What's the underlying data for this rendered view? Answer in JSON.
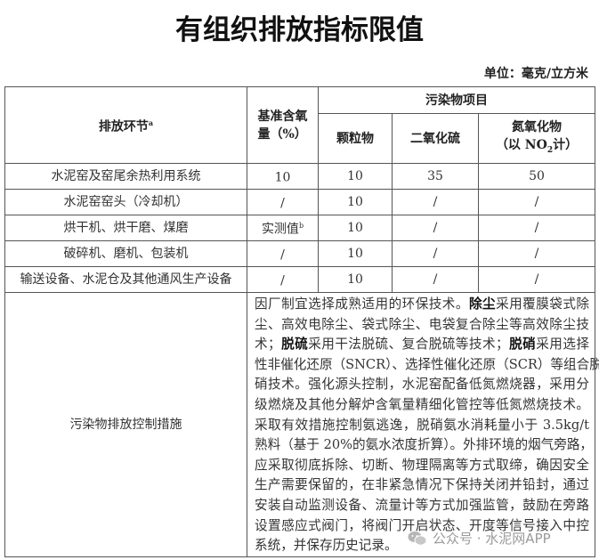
{
  "title": "有组织排放指标限值",
  "unit": "单位：毫克/立方米",
  "header": {
    "stage": "排放环节",
    "stage_note": "a",
    "oxygen": "基准含氧量（%）",
    "pollutants": "污染物项目",
    "pm": "颗粒物",
    "so2": "二氧化硫",
    "nox_line1": "氮氧化物",
    "nox_line2_pre": "（以 NO",
    "nox_sub": "2",
    "nox_line2_post": "计）"
  },
  "rows": [
    {
      "stage": "水泥窑及窑尾余热利用系统",
      "oxygen": "10",
      "oxygen_note": "",
      "pm": "10",
      "so2": "35",
      "nox": "50"
    },
    {
      "stage": "水泥窑窑头（冷却机）",
      "oxygen": "/",
      "oxygen_note": "",
      "pm": "10",
      "so2": "/",
      "nox": "/"
    },
    {
      "stage": "烘干机、烘干磨、煤磨",
      "oxygen": "实测值",
      "oxygen_note": "b",
      "pm": "10",
      "so2": "/",
      "nox": "/"
    },
    {
      "stage": "破碎机、磨机、包装机",
      "oxygen": "/",
      "oxygen_note": "",
      "pm": "10",
      "so2": "/",
      "nox": "/"
    },
    {
      "stage": "输送设备、水泥仓及其他通风生产设备",
      "oxygen": "/",
      "oxygen_note": "",
      "pm": "10",
      "so2": "/",
      "nox": "/"
    }
  ],
  "measures": {
    "label": "污染物排放控制措施",
    "lines": [
      [
        {
          "t": "因厂制宜选择成熟适用的环保技术。"
        },
        {
          "t": "除尘",
          "b": true
        },
        {
          "t": "采用覆膜袋式除"
        }
      ],
      [
        {
          "t": "尘、高效电除尘、袋式除尘、电袋复合除尘等高效除尘技"
        }
      ],
      [
        {
          "t": "术；"
        },
        {
          "t": "脱硫",
          "b": true
        },
        {
          "t": "采用干法脱硫、复合脱硫等技术；"
        },
        {
          "t": "脱硝",
          "b": true
        },
        {
          "t": "采用选择"
        }
      ],
      [
        {
          "t": "性非催化还原（SNCR）、选择性催化还原（SCR）等组合脱"
        }
      ],
      [
        {
          "t": "硝技术。强化源头控制，水泥窑配备低氮燃烧器，采用分"
        }
      ],
      [
        {
          "t": "级燃烧及其他分解炉含氧量精细化管控等低氮燃烧技术。"
        }
      ],
      [
        {
          "t": "采取有效措施控制氨逃逸，脱硝氨水消耗量小于 3.5kg/t"
        }
      ],
      [
        {
          "t": "熟料（基于 20%的氨水浓度折算）。外排环境的烟气旁路，"
        }
      ],
      [
        {
          "t": "应采取彻底拆除、切断、物理隔离等方式取缔，确因安全"
        }
      ],
      [
        {
          "t": "生产需要保留的，在非紧急情况下保持关闭并铅封，通过"
        }
      ],
      [
        {
          "t": "安装自动监测设备、流量计等方式加强监管，鼓励在旁路"
        }
      ],
      [
        {
          "t": "设置感应式阀门，将阀门开启状态、开度等信号接入中控"
        }
      ],
      [
        {
          "t": "系统，并保存历史记录。"
        }
      ]
    ]
  },
  "watermark": {
    "text": "公众号 · 水泥网APP",
    "icon": "wechat-icon"
  }
}
